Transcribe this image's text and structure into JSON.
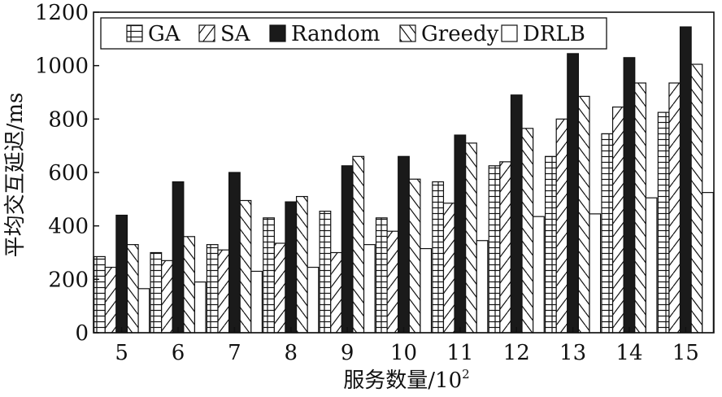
{
  "chart_data": {
    "type": "bar",
    "xlabel": "服务数量/10",
    "xlabel_sup": "2",
    "ylabel": "平均交互延迟/ms",
    "ylim": [
      0,
      1200
    ],
    "yticks": [
      0,
      200,
      400,
      600,
      800,
      1000,
      1200
    ],
    "categories": [
      "5",
      "6",
      "7",
      "8",
      "9",
      "10",
      "11",
      "12",
      "13",
      "14",
      "15"
    ],
    "legend_position": "top",
    "grid": false,
    "series": [
      {
        "name": "GA",
        "pattern": "grid",
        "values": [
          285,
          300,
          330,
          430,
          455,
          430,
          565,
          625,
          660,
          745,
          825
        ]
      },
      {
        "name": "SA",
        "pattern": "diag-right",
        "values": [
          245,
          270,
          310,
          335,
          300,
          380,
          485,
          640,
          800,
          845,
          935
        ]
      },
      {
        "name": "Random",
        "pattern": "solid",
        "values": [
          440,
          565,
          600,
          490,
          625,
          660,
          740,
          890,
          1045,
          1030,
          1145
        ]
      },
      {
        "name": "Greedy",
        "pattern": "diag-left",
        "values": [
          330,
          360,
          495,
          510,
          660,
          575,
          710,
          765,
          885,
          935,
          1005
        ]
      },
      {
        "name": "DRLB",
        "pattern": "empty",
        "values": [
          165,
          190,
          230,
          245,
          330,
          315,
          345,
          435,
          445,
          505,
          525
        ]
      }
    ]
  }
}
